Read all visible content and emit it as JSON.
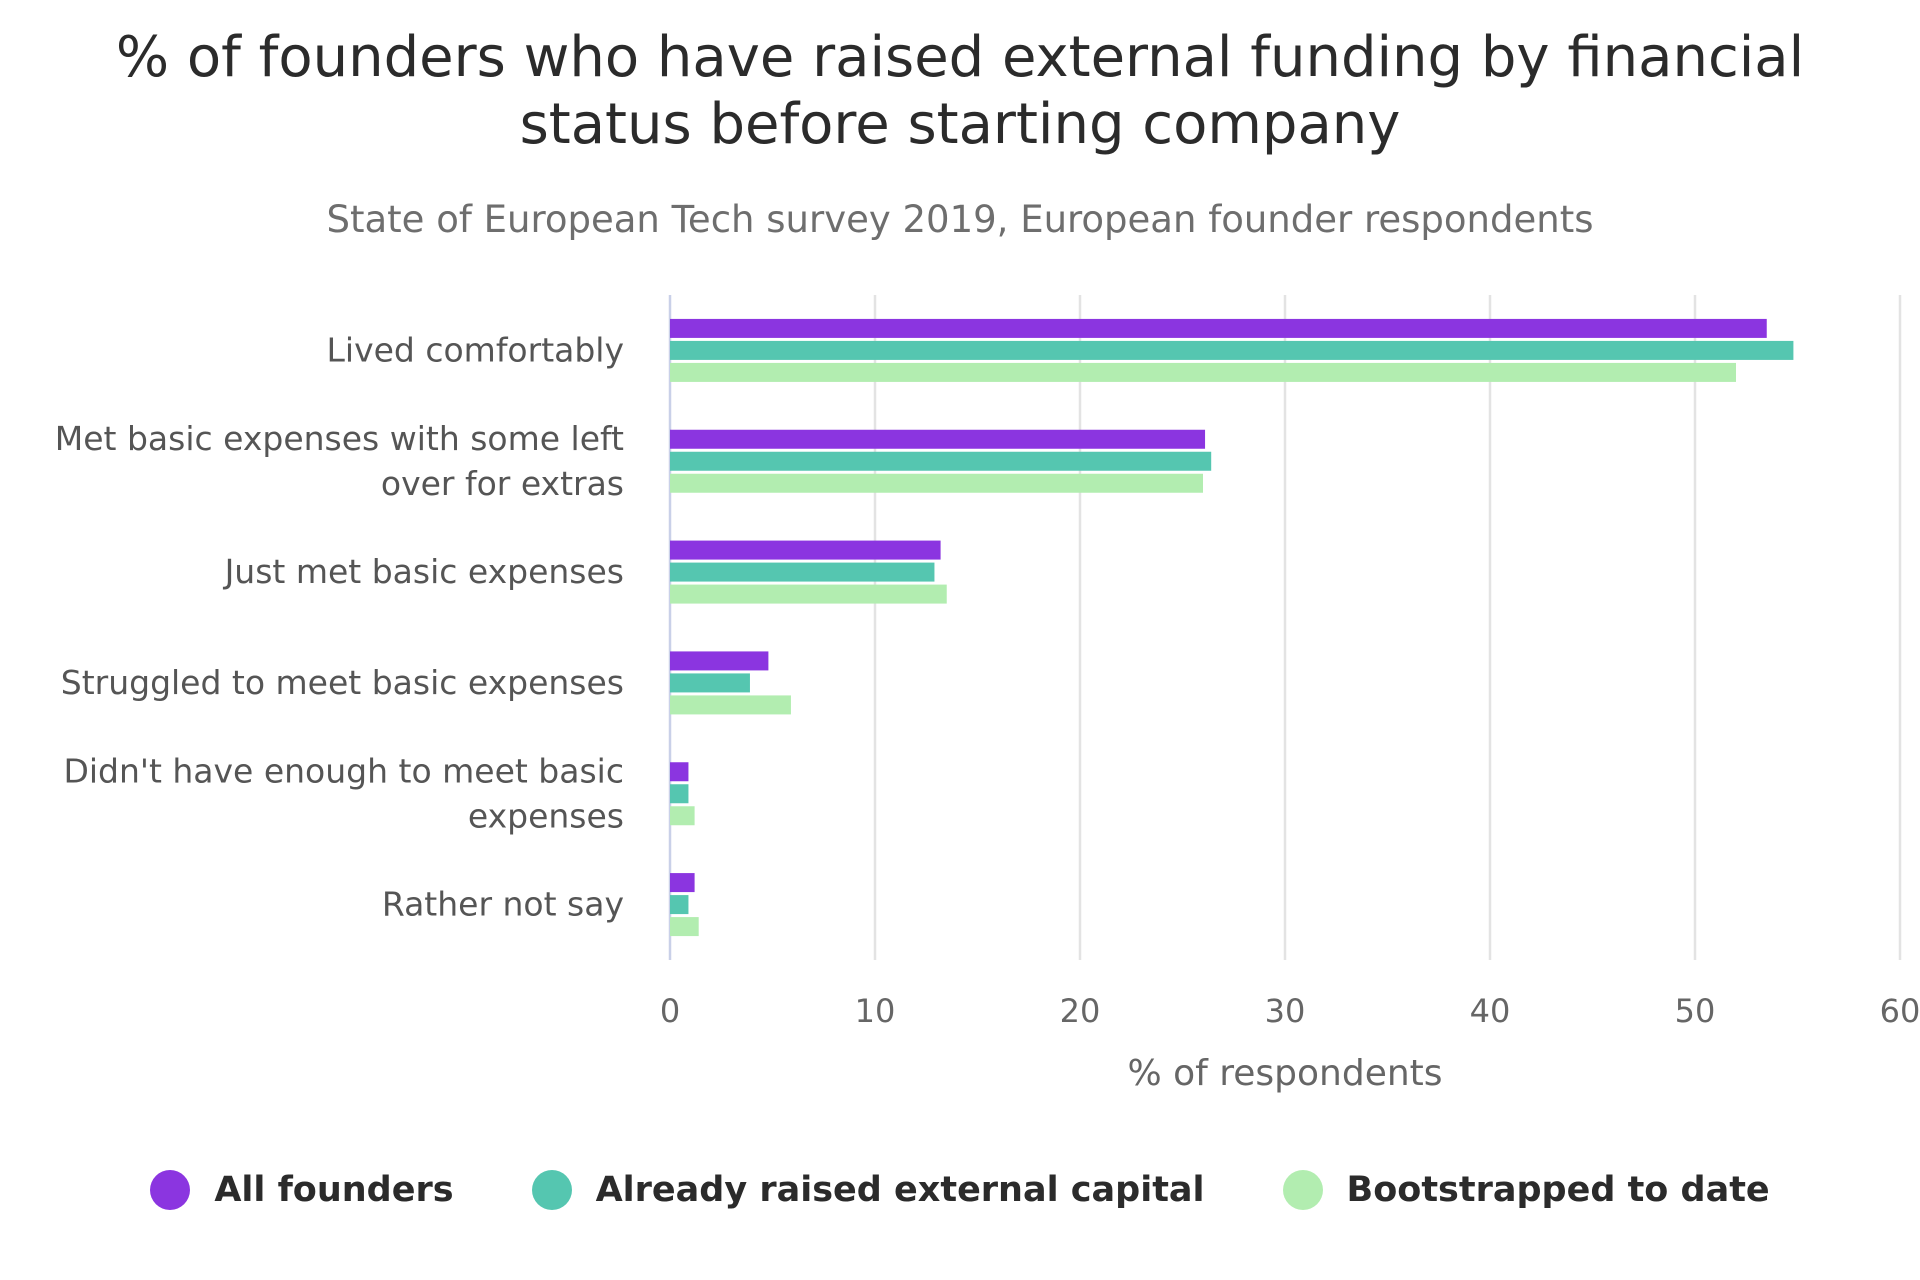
{
  "chart_data": {
    "type": "bar",
    "orientation": "horizontal",
    "title_lines": [
      "% of founders who have raised external funding by financial",
      "status before starting company"
    ],
    "subtitle": "State of European Tech survey 2019, European founder respondents",
    "categories": [
      [
        "Lived comfortably"
      ],
      [
        "Met basic expenses with some left",
        "over for extras"
      ],
      [
        "Just met basic expenses"
      ],
      [
        "Struggled to meet basic expenses"
      ],
      [
        "Didn't have enough to meet basic",
        "expenses"
      ],
      [
        "Rather not say"
      ]
    ],
    "series": [
      {
        "name": "All founders",
        "color": "#8b35e0",
        "values": [
          53.5,
          26.1,
          13.2,
          4.8,
          0.9,
          1.2
        ]
      },
      {
        "name": "Already raised external capital",
        "color": "#55c6b0",
        "values": [
          54.8,
          26.4,
          12.9,
          3.9,
          0.9,
          0.9
        ]
      },
      {
        "name": "Bootstrapped to date",
        "color": "#b2edb0",
        "values": [
          52.0,
          26.0,
          13.5,
          5.9,
          1.2,
          1.4
        ]
      }
    ],
    "xlabel": "% of respondents",
    "xlim": [
      0,
      60
    ],
    "xticks": [
      0,
      10,
      20,
      30,
      40,
      50,
      60
    ],
    "grid": "vertical",
    "legend_position": "bottom"
  }
}
